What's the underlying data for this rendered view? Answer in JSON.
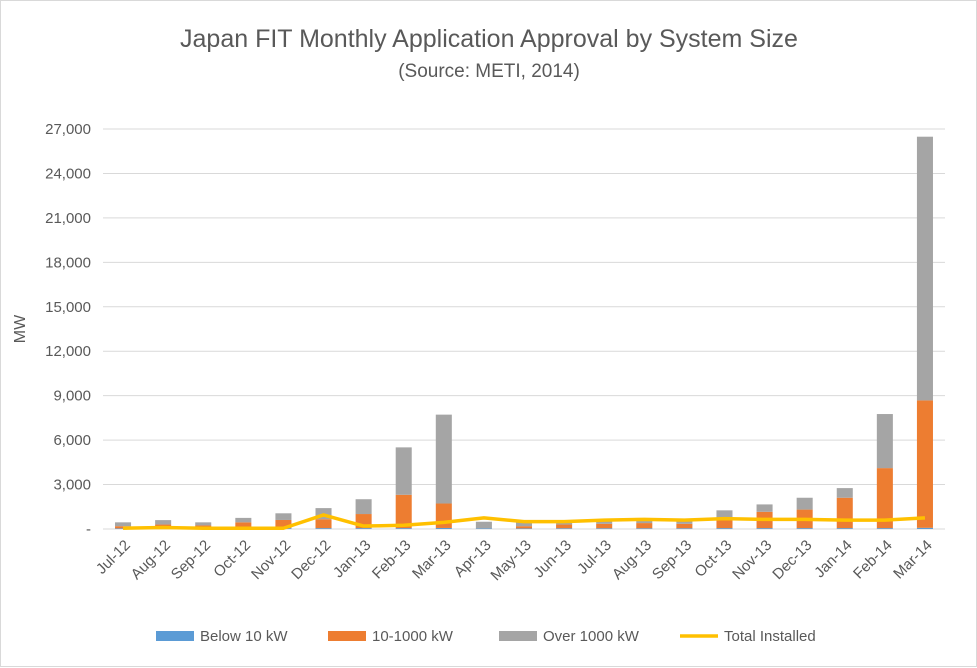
{
  "chart_data": {
    "type": "bar",
    "stacked": true,
    "title": "Japan FIT Monthly Application Approval by System Size",
    "subtitle": "(Source: METI, 2014)",
    "xlabel": "",
    "ylabel": "MW",
    "ylim": [
      0,
      27000
    ],
    "yticks": [
      "-",
      "3,000",
      "6,000",
      "9,000",
      "12,000",
      "15,000",
      "18,000",
      "21,000",
      "24,000",
      "27,000"
    ],
    "ytick_values": [
      0,
      3000,
      6000,
      9000,
      12000,
      15000,
      18000,
      21000,
      24000,
      27000
    ],
    "grid": true,
    "legend_position": "bottom",
    "categories": [
      "Jul-12",
      "Aug-12",
      "Sep-12",
      "Oct-12",
      "Nov-12",
      "Dec-12",
      "Jan-13",
      "Feb-13",
      "Mar-13",
      "Apr-13",
      "May-13",
      "Jun-13",
      "Jul-13",
      "Aug-13",
      "Sep-13",
      "Oct-13",
      "Nov-13",
      "Dec-13",
      "Jan-14",
      "Feb-14",
      "Mar-14"
    ],
    "series": [
      {
        "name": "Below 10 kW",
        "kind": "bar",
        "color": "#5b9bd5",
        "values": [
          40,
          50,
          40,
          50,
          60,
          60,
          60,
          60,
          70,
          40,
          40,
          50,
          50,
          50,
          50,
          60,
          60,
          60,
          60,
          60,
          80
        ]
      },
      {
        "name": "10-1000 kW",
        "kind": "bar",
        "color": "#ed7d31",
        "values": [
          150,
          250,
          200,
          400,
          550,
          600,
          950,
          2250,
          1650,
          0,
          150,
          250,
          300,
          350,
          300,
          700,
          1100,
          1250,
          2050,
          4050,
          8600
        ]
      },
      {
        "name": "Over 1000 kW",
        "kind": "bar",
        "color": "#a5a5a5",
        "values": [
          260,
          300,
          210,
          300,
          450,
          750,
          1000,
          3200,
          6000,
          450,
          300,
          200,
          200,
          250,
          200,
          500,
          500,
          800,
          650,
          3650,
          17800
        ]
      },
      {
        "name": "Total Installed",
        "kind": "line",
        "color": "#ffc000",
        "values": [
          50,
          100,
          50,
          50,
          50,
          950,
          200,
          250,
          450,
          750,
          500,
          500,
          600,
          650,
          600,
          700,
          650,
          650,
          600,
          600,
          750
        ]
      }
    ]
  }
}
